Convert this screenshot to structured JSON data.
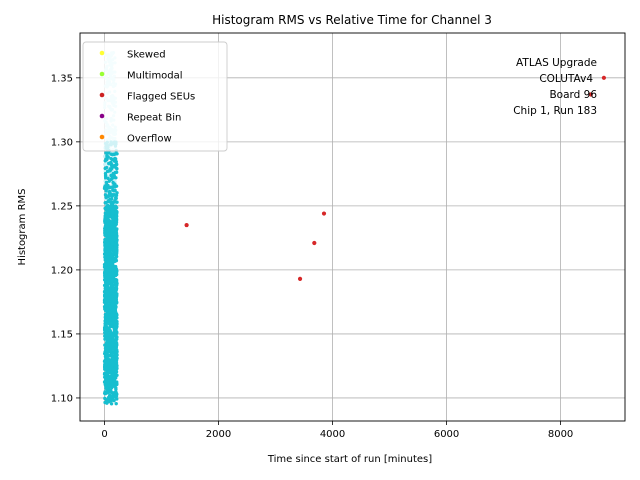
{
  "chart_data": {
    "type": "scatter",
    "title": "Histogram RMS vs Relative Time for Channel 3",
    "xlabel": "Time since start of run [minutes]",
    "ylabel": "Histogram RMS",
    "xlim": [
      -430,
      9130
    ],
    "ylim": [
      1.082,
      1.385
    ],
    "xticks": [
      0,
      2000,
      4000,
      6000,
      8000
    ],
    "xtick_labels": [
      "0",
      "2000",
      "4000",
      "6000",
      "8000"
    ],
    "yticks": [
      1.1,
      1.15,
      1.2,
      1.25,
      1.3,
      1.35
    ],
    "ytick_labels": [
      "1.10",
      "1.15",
      "1.20",
      "1.25",
      "1.30",
      "1.35"
    ],
    "grid": true,
    "legend_position": "top-left",
    "annotation_lines": [
      "ATLAS Upgrade",
      "COLUTAv4",
      "Board 96",
      "Chip 1, Run 183"
    ],
    "legend": [
      {
        "label": "Skewed",
        "color": "#ffff33"
      },
      {
        "label": "Multimodal",
        "color": "#99ff33"
      },
      {
        "label": "Flagged SEUs",
        "color": "#cc2222"
      },
      {
        "label": "Repeat Bin",
        "color": "#880088"
      },
      {
        "label": "Overflow",
        "color": "#ff8800"
      }
    ],
    "series": [
      {
        "name": "Flagged SEUs",
        "color": "#d62728",
        "points": [
          [
            1440,
            1.235
          ],
          [
            3430,
            1.193
          ],
          [
            3680,
            1.221
          ],
          [
            3850,
            1.244
          ],
          [
            8760,
            1.35
          ],
          [
            8530,
            1.337
          ]
        ]
      }
    ],
    "main_cluster": {
      "color": "#17becf",
      "light_color": "#c8f2f7",
      "x_range": [
        0,
        220
      ],
      "y_range": [
        1.095,
        1.37
      ],
      "dense_y_range": [
        1.11,
        1.25
      ]
    }
  }
}
